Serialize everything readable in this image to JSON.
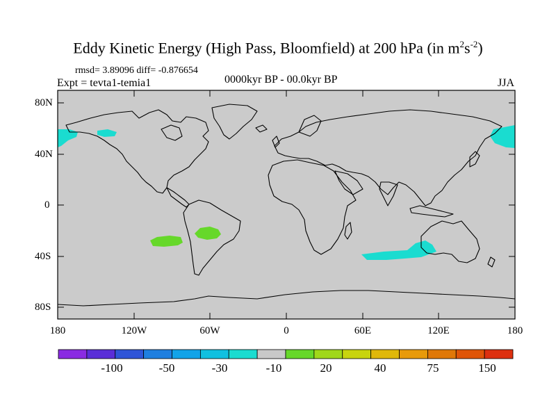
{
  "title": {
    "main": "Eddy Kinetic Energy (High Pass, Bloomfield) at 200 hPa (in m",
    "sup1": "2",
    "mid": "s",
    "sup2": "-2",
    "end": ")"
  },
  "subtitles": {
    "stats": "rmsd= 3.89096 diff= -0.876654",
    "experiment": "Expt = tevta1-temia1",
    "period": "0000kyr BP - 00.0kyr BP",
    "season": "JJA"
  },
  "axes": {
    "lat_labels": [
      "80N",
      "40N",
      "0",
      "40S",
      "80S"
    ],
    "lon_labels": [
      "180",
      "120W",
      "60W",
      "0",
      "60E",
      "120E",
      "180"
    ]
  },
  "colorbar": {
    "colors": [
      "#8a2be2",
      "#5a2ed8",
      "#2f55d8",
      "#1f7fe0",
      "#12a3e8",
      "#10c0e0",
      "#1adcd0",
      "#c8c8c8",
      "#66d82a",
      "#a0d81a",
      "#c8d40e",
      "#e0b80a",
      "#e89a0a",
      "#e07808",
      "#e05508",
      "#dd3010"
    ],
    "labels": [
      "-100",
      "-50",
      "-30",
      "-10",
      "20",
      "40",
      "75",
      "150"
    ]
  },
  "map": {
    "ocean_color": "#cbcbcb",
    "anomaly_colors": {
      "cyan": "#1adcd0",
      "green": "#66d82a"
    }
  }
}
